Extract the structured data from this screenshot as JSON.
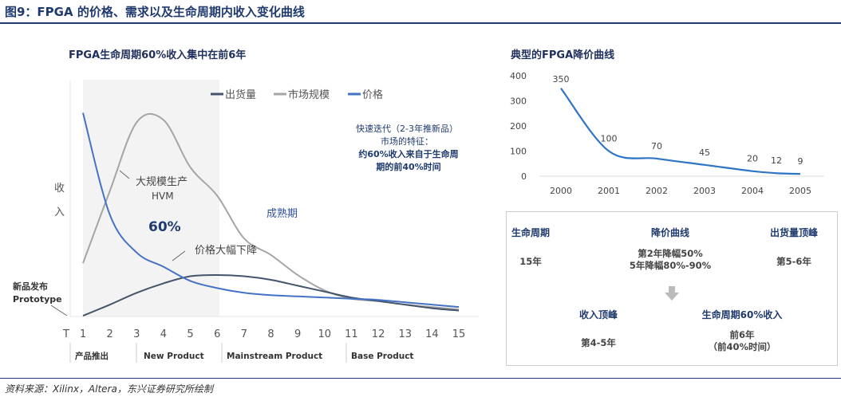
{
  "title": "图9：FPGA 的价格、需求以及生命周期内收入变化曲线",
  "source": "资料来源：Xilinx，Altera，东兴证券研究所绘制",
  "chart_data": [
    {
      "type": "line",
      "title": "FPGA生命周期60%收入集中在前6年",
      "ylabel": "收入",
      "x": [
        1,
        2,
        3,
        4,
        5,
        6,
        7,
        8,
        9,
        10,
        11,
        12,
        13,
        14,
        15
      ],
      "xticks": [
        "T",
        "1",
        "2",
        "3",
        "4",
        "5",
        "6",
        "7",
        "8",
        "9",
        "10",
        "11",
        "12",
        "13",
        "14",
        "15"
      ],
      "legend_position": "top",
      "series": [
        {
          "name": "出货量",
          "color": "#44546a",
          "values": [
            0.3,
            5,
            10,
            14,
            17,
            17.5,
            17,
            15.5,
            13,
            10.5,
            8,
            6.5,
            5,
            3.5,
            2.5
          ]
        },
        {
          "name": "市场规模",
          "color": "#a5a5a5",
          "values": [
            22.5,
            53,
            82,
            83,
            63,
            51,
            33,
            26,
            17.5,
            11,
            7.5,
            6.5,
            5,
            4,
            3
          ]
        },
        {
          "name": "价格",
          "color": "#4472c4",
          "values": [
            86,
            43,
            27,
            21,
            15,
            12,
            10,
            9,
            8.5,
            8,
            7.5,
            7,
            6,
            5,
            4
          ]
        }
      ],
      "shaded_range": [
        1,
        6
      ],
      "annotations": {
        "hvm": "大规模生产",
        "hvm2": "HVM",
        "pct": "60%",
        "drop": "价格大幅下降",
        "mature": "成熟期",
        "proto1": "新品发布",
        "proto2": "Prototype",
        "note1": "快速迭代（2-3年推新品）",
        "note2": "市场的特征：",
        "note3": "约60%收入来自于生命周",
        "note4": "期的前40%时间"
      },
      "phases": [
        "产品推出",
        "New Product",
        "Mainstream Product",
        "Base Product"
      ]
    },
    {
      "type": "line",
      "title": "典型的FPGA降价曲线",
      "color": "#2e75c6",
      "x": [
        2000,
        2001,
        2002,
        2003,
        2004,
        2004.5,
        2005
      ],
      "values": [
        350,
        100,
        70,
        45,
        20,
        12,
        9
      ],
      "xticks": [
        "2000",
        "2001",
        "2002",
        "2003",
        "2004",
        "2005"
      ],
      "yticks": [
        "0",
        "100",
        "200",
        "300",
        "400"
      ],
      "ylim": [
        0,
        400
      ]
    }
  ],
  "box": {
    "h1": "生命周期",
    "v1": "15年",
    "h2": "降价曲线",
    "v2a": "第2年降幅50%",
    "v2b": "5年降幅80%-90%",
    "h3": "出货量顶峰",
    "v3": "第5-6年",
    "h4": "收入顶峰",
    "v4": "第4-5年",
    "h5": "生命周期60%收入",
    "v5a": "前6年",
    "v5b": "（前40%时间）"
  }
}
